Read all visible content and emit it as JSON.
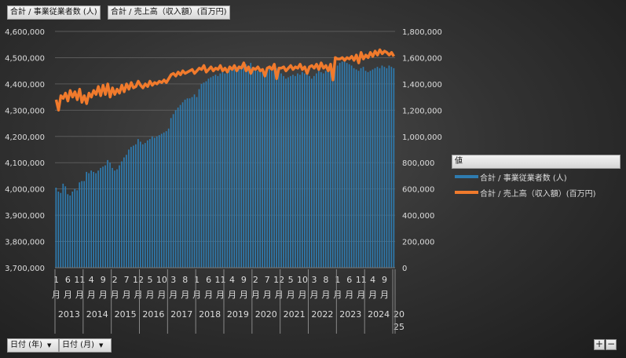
{
  "field_buttons": {
    "value1": "合計 / 事業従業者数 (人)",
    "value2": "合計 / 売上高（収入額）(百万円)",
    "axis_year": "日付 (年)",
    "axis_month": "日付 (月)"
  },
  "legend": {
    "title": "値",
    "items": [
      "合計 / 事業従業者数 (人)",
      "合計 / 売上高（収入額）(百万円)"
    ]
  },
  "zoom": {
    "plus": "+",
    "minus": "−"
  },
  "colors": {
    "bar": "#2e7bb0",
    "line": "#f07a2c"
  },
  "chart_data": {
    "type": "bar+line",
    "title": "",
    "y_left": {
      "min": 3700000,
      "max": 4600000,
      "step": 100000,
      "ticks": [
        "3,700,000",
        "3,800,000",
        "3,900,000",
        "4,000,000",
        "4,100,000",
        "4,200,000",
        "4,300,000",
        "4,400,000",
        "4,500,000",
        "4,600,000"
      ]
    },
    "y_right": {
      "min": 0,
      "max": 1800000,
      "step": 200000,
      "ticks": [
        "0",
        "200,000",
        "400,000",
        "600,000",
        "800,000",
        "1,000,000",
        "1,200,000",
        "1,400,000",
        "1,600,000",
        "1,800,000"
      ]
    },
    "x_month_labels": {
      "shown_every": 5,
      "suffix": "月"
    },
    "years": [
      "2013",
      "2014",
      "2015",
      "2016",
      "2017",
      "2018",
      "2019",
      "2020",
      "2021",
      "2022",
      "2023",
      "2024",
      "2025"
    ],
    "start": "2013-01",
    "end": "2025-01",
    "series": [
      {
        "name": "合計 / 事業従業者数 (人)",
        "axis": "left",
        "type": "bar",
        "values": [
          4005000,
          3990000,
          3985000,
          4020000,
          4010000,
          3980000,
          3975000,
          3990000,
          4000000,
          3995000,
          4025000,
          4030000,
          4030000,
          4065000,
          4060000,
          4070000,
          4065000,
          4060000,
          4070000,
          4080000,
          4085000,
          4090000,
          4110000,
          4100000,
          4080000,
          4070000,
          4075000,
          4090000,
          4105000,
          4120000,
          4130000,
          4150000,
          4160000,
          4165000,
          4170000,
          4190000,
          4180000,
          4170000,
          4175000,
          4185000,
          4190000,
          4200000,
          4195000,
          4200000,
          4205000,
          4210000,
          4215000,
          4220000,
          4230000,
          4270000,
          4285000,
          4300000,
          4310000,
          4320000,
          4330000,
          4340000,
          4345000,
          4345000,
          4350000,
          4360000,
          4350000,
          4380000,
          4400000,
          4405000,
          4410000,
          4420000,
          4425000,
          4430000,
          4435000,
          4430000,
          4440000,
          4450000,
          4440000,
          4450000,
          4460000,
          4455000,
          4460000,
          4465000,
          4470000,
          4470000,
          4465000,
          4475000,
          4470000,
          4480000,
          4460000,
          4455000,
          4450000,
          4455000,
          4450000,
          4445000,
          4455000,
          4460000,
          4450000,
          4455000,
          4460000,
          4465000,
          4440000,
          4430000,
          4420000,
          4425000,
          4430000,
          4435000,
          4430000,
          4440000,
          4435000,
          4445000,
          4440000,
          4450000,
          4430000,
          4420000,
          4430000,
          4440000,
          4450000,
          4445000,
          4440000,
          4450000,
          4455000,
          4460000,
          4460000,
          4470000,
          4470000,
          4480000,
          4485000,
          4490000,
          4480000,
          4475000,
          4470000,
          4460000,
          4455000,
          4450000,
          4460000,
          4465000,
          4450000,
          4445000,
          4450000,
          4455000,
          4460000,
          4465000,
          4460000,
          4470000,
          4465000,
          4460000,
          4470000,
          4465000,
          4460000
        ]
      },
      {
        "name": "合計 / 売上高（収入額）(百万円)",
        "axis": "right",
        "type": "line",
        "values": [
          1280000,
          1200000,
          1310000,
          1290000,
          1330000,
          1270000,
          1350000,
          1300000,
          1340000,
          1280000,
          1360000,
          1260000,
          1310000,
          1250000,
          1330000,
          1300000,
          1350000,
          1320000,
          1380000,
          1310000,
          1390000,
          1320000,
          1400000,
          1300000,
          1370000,
          1320000,
          1360000,
          1330000,
          1390000,
          1340000,
          1400000,
          1360000,
          1410000,
          1370000,
          1380000,
          1420000,
          1390000,
          1370000,
          1400000,
          1380000,
          1420000,
          1390000,
          1410000,
          1400000,
          1420000,
          1410000,
          1430000,
          1410000,
          1440000,
          1470000,
          1480000,
          1460000,
          1490000,
          1470000,
          1500000,
          1480000,
          1490000,
          1500000,
          1510000,
          1480000,
          1500000,
          1520000,
          1510000,
          1540000,
          1490000,
          1510000,
          1530000,
          1500000,
          1520000,
          1510000,
          1540000,
          1500000,
          1520000,
          1490000,
          1530000,
          1510000,
          1540000,
          1500000,
          1530000,
          1520000,
          1560000,
          1500000,
          1530000,
          1480000,
          1520000,
          1510000,
          1530000,
          1500000,
          1510000,
          1460000,
          1520000,
          1530000,
          1510000,
          1550000,
          1440000,
          1520000,
          1520000,
          1530000,
          1500000,
          1520000,
          1540000,
          1510000,
          1530000,
          1520000,
          1550000,
          1510000,
          1530000,
          1480000,
          1530000,
          1540000,
          1520000,
          1550000,
          1510000,
          1560000,
          1520000,
          1540000,
          1500000,
          1550000,
          1430000,
          1600000,
          1590000,
          1590000,
          1600000,
          1580000,
          1600000,
          1590000,
          1610000,
          1580000,
          1620000,
          1560000,
          1640000,
          1590000,
          1620000,
          1600000,
          1640000,
          1610000,
          1650000,
          1620000,
          1660000,
          1630000,
          1650000,
          1640000,
          1620000,
          1640000,
          1610000
        ]
      }
    ],
    "legend_position": "right",
    "grid": true
  }
}
